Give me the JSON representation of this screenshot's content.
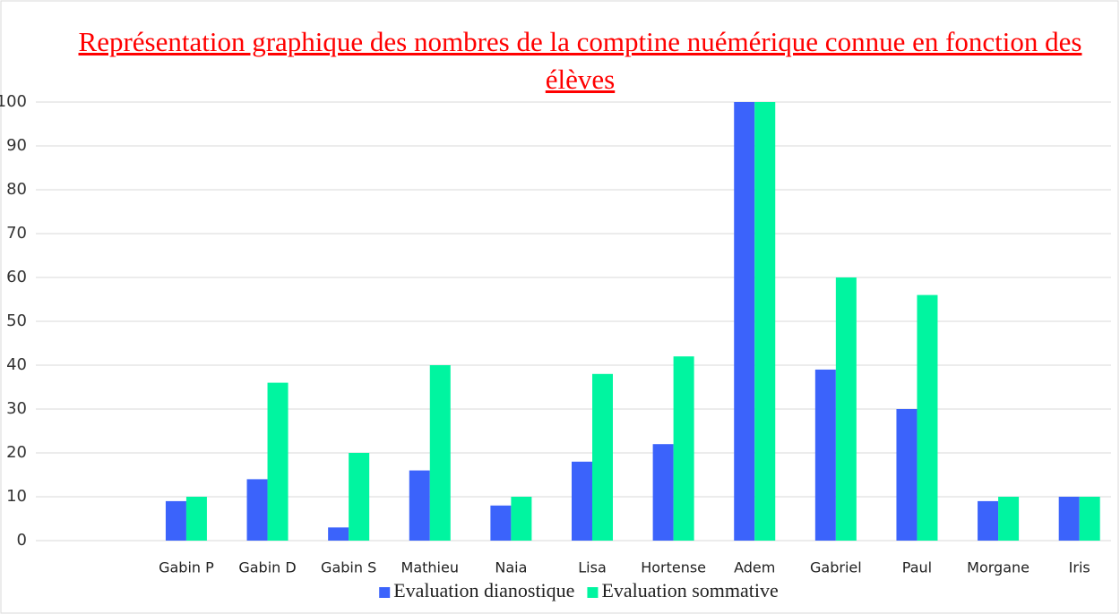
{
  "chart_data": {
    "type": "bar",
    "title": "Représentation graphique des nombres de la comptine nuémérique connue en fonction des élèves",
    "categories": [
      null,
      "Gabin P",
      "Gabin D",
      "Gabin S",
      "Mathieu",
      "Naia",
      "Lisa",
      "Hortense",
      "Adem",
      "Gabriel",
      "Paul",
      "Morgane",
      "Iris"
    ],
    "series": [
      {
        "name": "Evaluation dianostique",
        "color": "#3b63fb",
        "values": [
          null,
          9,
          14,
          3,
          16,
          8,
          18,
          22,
          100,
          39,
          30,
          9,
          10
        ]
      },
      {
        "name": "Evaluation sommative",
        "color": "#00f5a0",
        "values": [
          null,
          10,
          36,
          20,
          40,
          10,
          38,
          42,
          100,
          60,
          56,
          10,
          10
        ]
      }
    ],
    "ylim": [
      0,
      100
    ],
    "yticks": [
      0,
      10,
      20,
      30,
      40,
      50,
      60,
      70,
      80,
      90,
      100
    ],
    "grid": true,
    "legend": "bottom"
  }
}
